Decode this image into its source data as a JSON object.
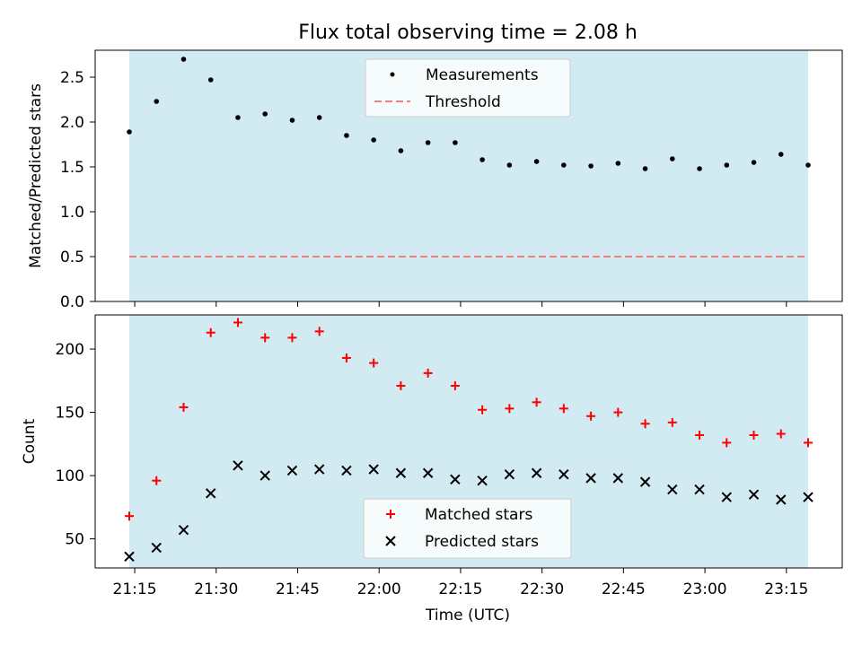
{
  "title": "Flux total observing time = 2.08 h",
  "xlabel": "Time (UTC)",
  "x_ticks": [
    "21:15",
    "21:30",
    "21:45",
    "22:00",
    "22:15",
    "22:30",
    "22:45",
    "23:00",
    "23:15"
  ],
  "observing_window": {
    "start": "21:14",
    "end": "23:19",
    "color": "#add8e6"
  },
  "chart_data": [
    {
      "type": "scatter",
      "ylabel": "Matched/Predicted stars",
      "ylim": [
        0,
        2.8
      ],
      "y_ticks": [
        "0.0",
        "0.5",
        "1.0",
        "1.5",
        "2.0",
        "2.5"
      ],
      "x": [
        "21:14",
        "21:19",
        "21:24",
        "21:29",
        "21:34",
        "21:39",
        "21:44",
        "21:49",
        "21:54",
        "21:59",
        "22:04",
        "22:09",
        "22:14",
        "22:19",
        "22:24",
        "22:29",
        "22:34",
        "22:39",
        "22:44",
        "22:49",
        "22:54",
        "22:59",
        "23:04",
        "23:09",
        "23:14",
        "23:19"
      ],
      "series": [
        {
          "name": "Measurements",
          "marker": "dot",
          "color": "#000000",
          "values": [
            1.89,
            2.23,
            2.7,
            2.47,
            2.05,
            2.09,
            2.02,
            2.05,
            1.85,
            1.8,
            1.68,
            1.77,
            1.77,
            1.58,
            1.52,
            1.56,
            1.52,
            1.51,
            1.54,
            1.48,
            1.59,
            1.48,
            1.52,
            1.55,
            1.64,
            1.52
          ]
        },
        {
          "name": "Threshold",
          "marker": "dashed-line",
          "color": "#f08080",
          "value": 0.5
        }
      ],
      "legend": "top-center"
    },
    {
      "type": "scatter",
      "ylabel": "Count",
      "ylim": [
        27,
        227
      ],
      "y_ticks": [
        "50",
        "100",
        "150",
        "200"
      ],
      "x": [
        "21:14",
        "21:19",
        "21:24",
        "21:29",
        "21:34",
        "21:39",
        "21:44",
        "21:49",
        "21:54",
        "21:59",
        "22:04",
        "22:09",
        "22:14",
        "22:19",
        "22:24",
        "22:29",
        "22:34",
        "22:39",
        "22:44",
        "22:49",
        "22:54",
        "22:59",
        "23:04",
        "23:09",
        "23:14",
        "23:19"
      ],
      "series": [
        {
          "name": "Matched stars",
          "marker": "plus",
          "color": "#ff0000",
          "values": [
            68,
            96,
            154,
            213,
            221,
            209,
            209,
            214,
            193,
            189,
            171,
            181,
            171,
            152,
            153,
            158,
            153,
            147,
            150,
            141,
            142,
            132,
            126,
            132,
            133,
            126
          ]
        },
        {
          "name": "Predicted stars",
          "marker": "x",
          "color": "#000000",
          "values": [
            36,
            43,
            57,
            86,
            108,
            100,
            104,
            105,
            104,
            105,
            102,
            102,
            97,
            96,
            101,
            102,
            101,
            98,
            98,
            95,
            89,
            89,
            83,
            85,
            81,
            83
          ]
        }
      ],
      "legend": "bottom-center"
    }
  ]
}
